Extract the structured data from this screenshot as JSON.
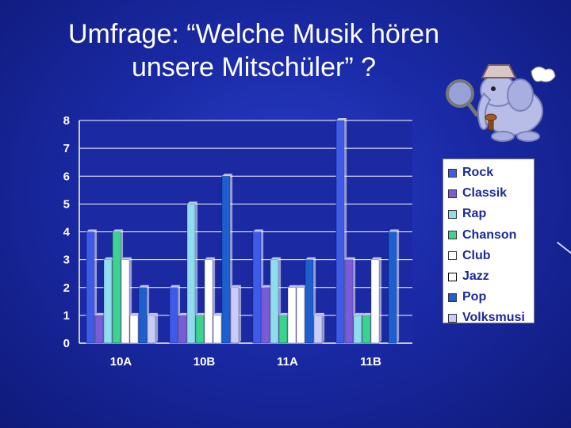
{
  "title": {
    "line1": "Umfrage: “Welche Musik hören",
    "line2": "unsere Mitschüler” ?"
  },
  "chart_data": {
    "type": "bar",
    "categories": [
      "10A",
      "10B",
      "11A",
      "11B"
    ],
    "ylim": [
      0,
      8
    ],
    "yticks": [
      0,
      1,
      2,
      3,
      4,
      5,
      6,
      7,
      8
    ],
    "grid": true,
    "legend_position": "right",
    "series": [
      {
        "name": "Rock",
        "color": "#3d5be8",
        "values": [
          4,
          2,
          4,
          8
        ]
      },
      {
        "name": "Classik",
        "color": "#7a5cd8",
        "values": [
          1,
          1,
          2,
          3
        ]
      },
      {
        "name": "Rap",
        "color": "#8fdcec",
        "values": [
          3,
          5,
          3,
          1
        ]
      },
      {
        "name": "Chanson",
        "color": "#3bd48c",
        "values": [
          4,
          1,
          1,
          1
        ]
      },
      {
        "name": "Club",
        "color": "#ffffff",
        "values": [
          3,
          3,
          2,
          3
        ]
      },
      {
        "name": "Jazz",
        "color": "#ffffff",
        "values": [
          1,
          1,
          2,
          0
        ]
      },
      {
        "name": "Pop",
        "color": "#1e5fd0",
        "values": [
          2,
          6,
          3,
          4
        ]
      },
      {
        "name": "Volksmusi",
        "color": "#c9ccf4",
        "values": [
          1,
          2,
          1,
          0
        ]
      }
    ]
  }
}
